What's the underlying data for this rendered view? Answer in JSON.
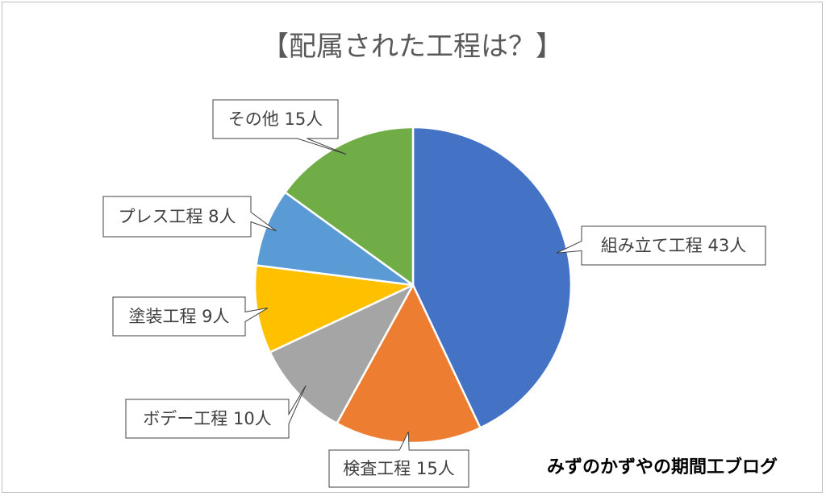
{
  "chart_data": {
    "type": "pie",
    "title": "【配属された工程は？】",
    "unit": "人",
    "slices": [
      {
        "label": "組み立て工程",
        "value": 43,
        "color": "#4472C4",
        "display": "組み立て工程 43人"
      },
      {
        "label": "検査工程",
        "value": 15,
        "color": "#ED7D31",
        "display": "検査工程 15人"
      },
      {
        "label": "ボデー工程",
        "value": 10,
        "color": "#A5A5A5",
        "display": "ボデー工程 10人"
      },
      {
        "label": "塗装工程",
        "value": 9,
        "color": "#FFC000",
        "display": "塗装工程 9人"
      },
      {
        "label": "プレス工程",
        "value": 8,
        "color": "#5B9BD5",
        "display": "プレス工程 8人"
      },
      {
        "label": "その他",
        "value": 15,
        "color": "#70AD47",
        "display": "その他 15人"
      }
    ],
    "start_angle": "12 o'clock",
    "direction": "clockwise",
    "legend": "none",
    "data_labels": "callouts"
  },
  "footer": {
    "text": "みずのかずやの期間工ブログ"
  }
}
